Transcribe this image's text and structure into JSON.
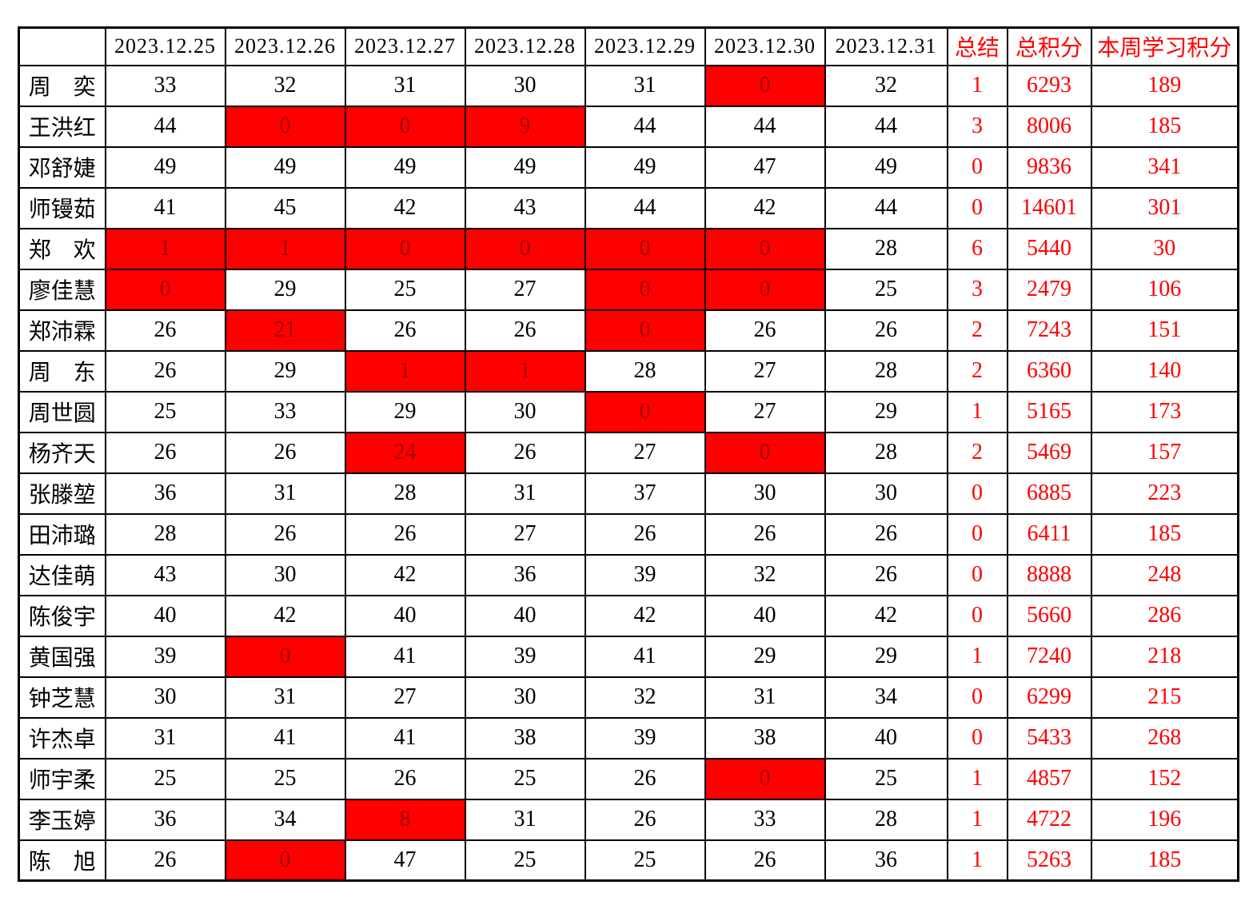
{
  "sheet_title": "weekly-study-points-table",
  "colors": {
    "highlight_bg": "#FF0000",
    "highlight_text": "#A00000",
    "accent_text": "#FF0000",
    "grid": "#000000"
  },
  "columns": {
    "corner": "",
    "dates": [
      "2023.12.25",
      "2023.12.26",
      "2023.12.27",
      "2023.12.28",
      "2023.12.29",
      "2023.12.30",
      "2023.12.31"
    ],
    "summary": "总结",
    "total": "总积分",
    "week": "本周学习积分"
  },
  "rows": [
    {
      "name": "周　奕",
      "days": [
        33,
        32,
        31,
        30,
        31,
        0,
        32
      ],
      "red_days": [
        5
      ],
      "summary": 1,
      "total": 6293,
      "week": 189
    },
    {
      "name": "王洪红",
      "days": [
        44,
        0,
        0,
        9,
        44,
        44,
        44
      ],
      "red_days": [
        1,
        2,
        3
      ],
      "summary": 3,
      "total": 8006,
      "week": 185
    },
    {
      "name": "邓舒婕",
      "days": [
        49,
        49,
        49,
        49,
        49,
        47,
        49
      ],
      "red_days": [],
      "summary": 0,
      "total": 9836,
      "week": 341
    },
    {
      "name": "师镘茹",
      "days": [
        41,
        45,
        42,
        43,
        44,
        42,
        44
      ],
      "red_days": [],
      "summary": 0,
      "total": 14601,
      "week": 301
    },
    {
      "name": "郑　欢",
      "days": [
        1,
        1,
        0,
        0,
        0,
        0,
        28
      ],
      "red_days": [
        0,
        1,
        2,
        3,
        4,
        5
      ],
      "summary": 6,
      "total": 5440,
      "week": 30
    },
    {
      "name": "廖佳慧",
      "days": [
        0,
        29,
        25,
        27,
        0,
        0,
        25
      ],
      "red_days": [
        0,
        4,
        5
      ],
      "summary": 3,
      "total": 2479,
      "week": 106
    },
    {
      "name": "郑沛霖",
      "days": [
        26,
        21,
        26,
        26,
        0,
        26,
        26
      ],
      "red_days": [
        1,
        4
      ],
      "summary": 2,
      "total": 7243,
      "week": 151
    },
    {
      "name": "周　东",
      "days": [
        26,
        29,
        1,
        1,
        28,
        27,
        28
      ],
      "red_days": [
        2,
        3
      ],
      "summary": 2,
      "total": 6360,
      "week": 140
    },
    {
      "name": "周世圆",
      "days": [
        25,
        33,
        29,
        30,
        0,
        27,
        29
      ],
      "red_days": [
        4
      ],
      "summary": 1,
      "total": 5165,
      "week": 173
    },
    {
      "name": "杨齐天",
      "days": [
        26,
        26,
        24,
        26,
        27,
        0,
        28
      ],
      "red_days": [
        2,
        5
      ],
      "summary": 2,
      "total": 5469,
      "week": 157
    },
    {
      "name": "张滕堃",
      "days": [
        36,
        31,
        28,
        31,
        37,
        30,
        30
      ],
      "red_days": [],
      "summary": 0,
      "total": 6885,
      "week": 223
    },
    {
      "name": "田沛璐",
      "days": [
        28,
        26,
        26,
        27,
        26,
        26,
        26
      ],
      "red_days": [],
      "summary": 0,
      "total": 6411,
      "week": 185
    },
    {
      "name": "达佳萌",
      "days": [
        43,
        30,
        42,
        36,
        39,
        32,
        26
      ],
      "red_days": [],
      "summary": 0,
      "total": 8888,
      "week": 248
    },
    {
      "name": "陈俊宇",
      "days": [
        40,
        42,
        40,
        40,
        42,
        40,
        42
      ],
      "red_days": [],
      "summary": 0,
      "total": 5660,
      "week": 286
    },
    {
      "name": "黄国强",
      "days": [
        39,
        0,
        41,
        39,
        41,
        29,
        29
      ],
      "red_days": [
        1
      ],
      "summary": 1,
      "total": 7240,
      "week": 218
    },
    {
      "name": "钟芝慧",
      "days": [
        30,
        31,
        27,
        30,
        32,
        31,
        34
      ],
      "red_days": [],
      "summary": 0,
      "total": 6299,
      "week": 215
    },
    {
      "name": "许杰卓",
      "days": [
        31,
        41,
        41,
        38,
        39,
        38,
        40
      ],
      "red_days": [],
      "summary": 0,
      "total": 5433,
      "week": 268
    },
    {
      "name": "师宇柔",
      "days": [
        25,
        25,
        26,
        25,
        26,
        0,
        25
      ],
      "red_days": [
        5
      ],
      "summary": 1,
      "total": 4857,
      "week": 152
    },
    {
      "name": "李玉婷",
      "days": [
        36,
        34,
        8,
        31,
        26,
        33,
        28
      ],
      "red_days": [
        2
      ],
      "summary": 1,
      "total": 4722,
      "week": 196
    },
    {
      "name": "陈　旭",
      "days": [
        26,
        0,
        47,
        25,
        25,
        26,
        36
      ],
      "red_days": [
        1
      ],
      "summary": 1,
      "total": 5263,
      "week": 185
    }
  ]
}
